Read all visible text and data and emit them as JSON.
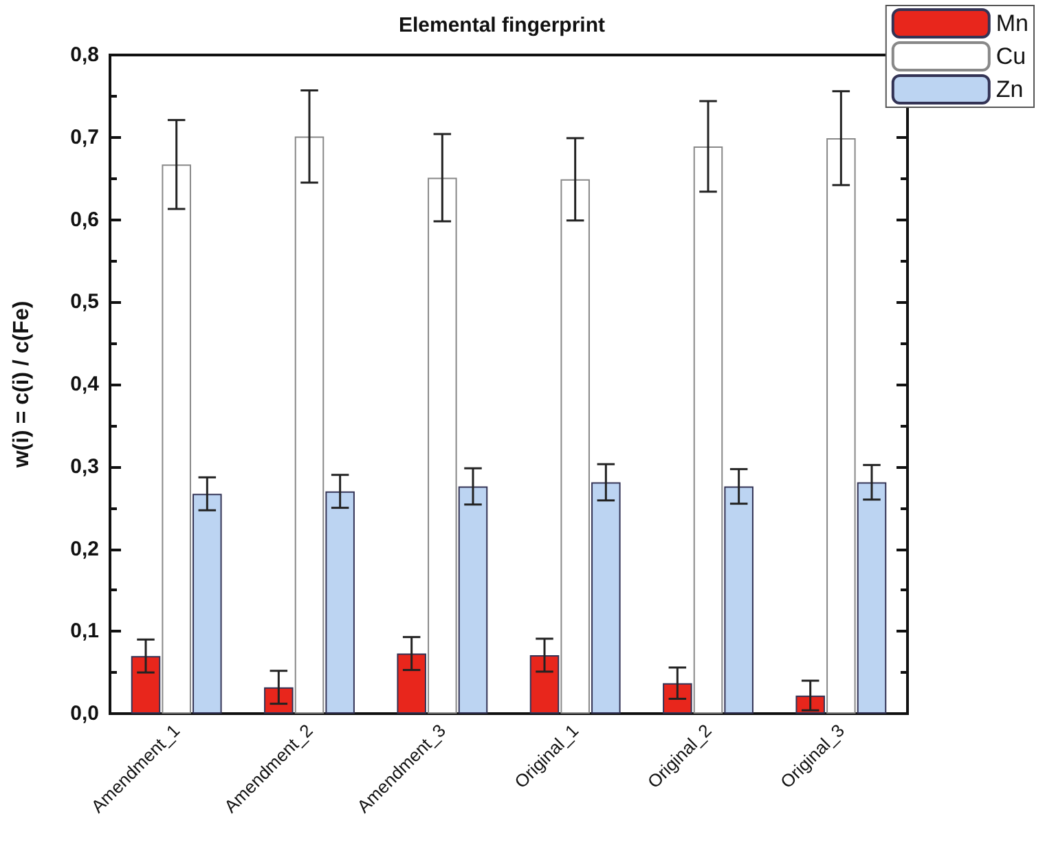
{
  "chart_data": {
    "type": "bar",
    "title": "Elemental fingerprint",
    "ylabel": "w(i) = c(i) / c(Fe)",
    "categories": [
      "Amendment_1",
      "Amendment_2",
      "Amendment_3",
      "Original_1",
      "Original_2",
      "Original_3"
    ],
    "series": [
      {
        "name": "Mn",
        "color": "#e8261c",
        "values": [
          0.07,
          0.032,
          0.073,
          0.071,
          0.037,
          0.022
        ],
        "errors": [
          0.02,
          0.02,
          0.02,
          0.02,
          0.019,
          0.018
        ]
      },
      {
        "name": "Cu",
        "color": "#ffffff",
        "values": [
          0.667,
          0.701,
          0.651,
          0.649,
          0.689,
          0.699
        ],
        "errors": [
          0.054,
          0.056,
          0.053,
          0.05,
          0.055,
          0.057
        ]
      },
      {
        "name": "Zn",
        "color": "#bcd4f2",
        "values": [
          0.267,
          0.27,
          0.276,
          0.281,
          0.276,
          0.281
        ],
        "errors": [
          0.02,
          0.02,
          0.022,
          0.022,
          0.021,
          0.021
        ]
      }
    ],
    "ylim": [
      0,
      0.8
    ],
    "yticks": [
      {
        "value": 0,
        "label": "0,0"
      },
      {
        "value": 0.1,
        "label": "0,1"
      },
      {
        "value": 0.2,
        "label": "0,2"
      },
      {
        "value": 0.3,
        "label": "0,3"
      },
      {
        "value": 0.4,
        "label": "0,4"
      },
      {
        "value": 0.5,
        "label": "0,5"
      },
      {
        "value": 0.6,
        "label": "0,6"
      },
      {
        "value": 0.7,
        "label": "0,7"
      },
      {
        "value": 0.8,
        "label": "0,8"
      }
    ],
    "grid": false,
    "legend": "top right"
  }
}
